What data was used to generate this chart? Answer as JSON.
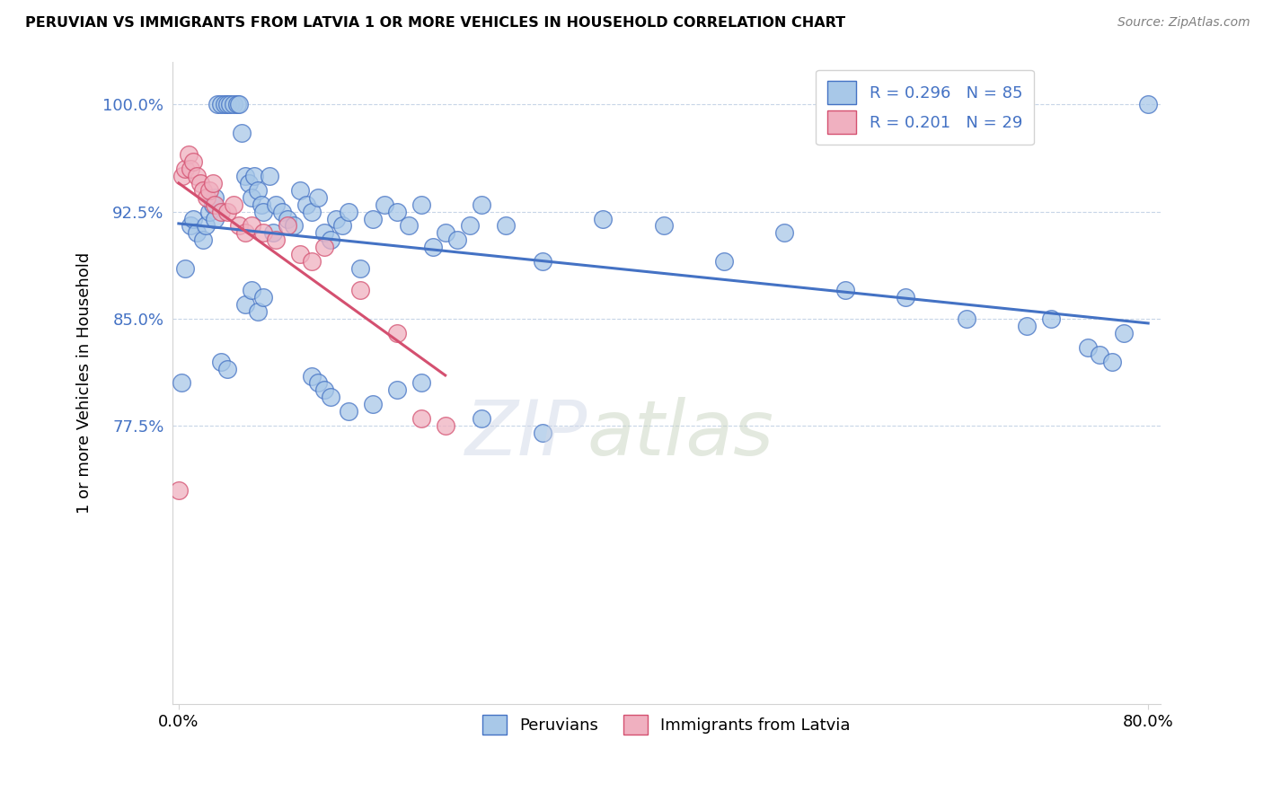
{
  "title": "PERUVIAN VS IMMIGRANTS FROM LATVIA 1 OR MORE VEHICLES IN HOUSEHOLD CORRELATION CHART",
  "source": "Source: ZipAtlas.com",
  "ylabel": "1 or more Vehicles in Household",
  "legend_r_blue": "R = 0.296",
  "legend_n_blue": "N = 85",
  "legend_r_pink": "R = 0.201",
  "legend_n_pink": "N = 29",
  "legend_label_blue": "Peruvians",
  "legend_label_pink": "Immigrants from Latvia",
  "blue_color": "#a8c8e8",
  "pink_color": "#f0b0c0",
  "line_blue_color": "#4472c4",
  "line_pink_color": "#d45070",
  "watermark_zip": "ZIP",
  "watermark_atlas": "atlas",
  "blue_x": [
    0.2,
    0.5,
    1.0,
    1.2,
    1.5,
    2.0,
    2.2,
    2.5,
    2.8,
    3.0,
    3.0,
    3.2,
    3.5,
    3.8,
    4.0,
    4.2,
    4.5,
    4.8,
    5.0,
    5.2,
    5.5,
    5.8,
    6.0,
    6.2,
    6.5,
    6.8,
    7.0,
    7.5,
    7.8,
    8.0,
    8.5,
    9.0,
    9.5,
    10.0,
    10.5,
    11.0,
    11.5,
    12.0,
    12.5,
    13.0,
    13.5,
    14.0,
    15.0,
    16.0,
    17.0,
    18.0,
    19.0,
    20.0,
    21.0,
    22.0,
    23.0,
    24.0,
    25.0,
    27.0,
    30.0,
    35.0,
    40.0,
    45.0,
    50.0,
    55.0,
    60.0,
    65.0,
    70.0,
    72.0,
    75.0,
    76.0,
    77.0,
    78.0,
    5.5,
    6.0,
    6.5,
    7.0,
    3.5,
    4.0,
    11.0,
    11.5,
    12.0,
    12.5,
    14.0,
    16.0,
    18.0,
    20.0,
    25.0,
    30.0,
    80.0
  ],
  "blue_y": [
    80.5,
    88.5,
    91.5,
    92.0,
    91.0,
    90.5,
    91.5,
    92.5,
    93.0,
    92.0,
    93.5,
    100.0,
    100.0,
    100.0,
    100.0,
    100.0,
    100.0,
    100.0,
    100.0,
    98.0,
    95.0,
    94.5,
    93.5,
    95.0,
    94.0,
    93.0,
    92.5,
    95.0,
    91.0,
    93.0,
    92.5,
    92.0,
    91.5,
    94.0,
    93.0,
    92.5,
    93.5,
    91.0,
    90.5,
    92.0,
    91.5,
    92.5,
    88.5,
    92.0,
    93.0,
    92.5,
    91.5,
    93.0,
    90.0,
    91.0,
    90.5,
    91.5,
    93.0,
    91.5,
    89.0,
    92.0,
    91.5,
    89.0,
    91.0,
    87.0,
    86.5,
    85.0,
    84.5,
    85.0,
    83.0,
    82.5,
    82.0,
    84.0,
    86.0,
    87.0,
    85.5,
    86.5,
    82.0,
    81.5,
    81.0,
    80.5,
    80.0,
    79.5,
    78.5,
    79.0,
    80.0,
    80.5,
    78.0,
    77.0,
    100.0
  ],
  "pink_x": [
    0.0,
    0.3,
    0.5,
    0.8,
    1.0,
    1.2,
    1.5,
    1.8,
    2.0,
    2.3,
    2.5,
    2.8,
    3.0,
    3.5,
    4.0,
    4.5,
    5.0,
    5.5,
    6.0,
    7.0,
    8.0,
    9.0,
    10.0,
    11.0,
    12.0,
    15.0,
    18.0,
    20.0,
    22.0
  ],
  "pink_y": [
    73.0,
    95.0,
    95.5,
    96.5,
    95.5,
    96.0,
    95.0,
    94.5,
    94.0,
    93.5,
    94.0,
    94.5,
    93.0,
    92.5,
    92.5,
    93.0,
    91.5,
    91.0,
    91.5,
    91.0,
    90.5,
    91.5,
    89.5,
    89.0,
    90.0,
    87.0,
    84.0,
    78.0,
    77.5
  ],
  "xmin": -0.5,
  "xmax": 81.0,
  "ymin": 58.0,
  "ymax": 103.0,
  "ytick_vals": [
    77.5,
    85.0,
    92.5,
    100.0
  ],
  "xtick_vals": [
    0,
    80
  ],
  "xtick_labels": [
    "0.0%",
    "80.0%"
  ]
}
